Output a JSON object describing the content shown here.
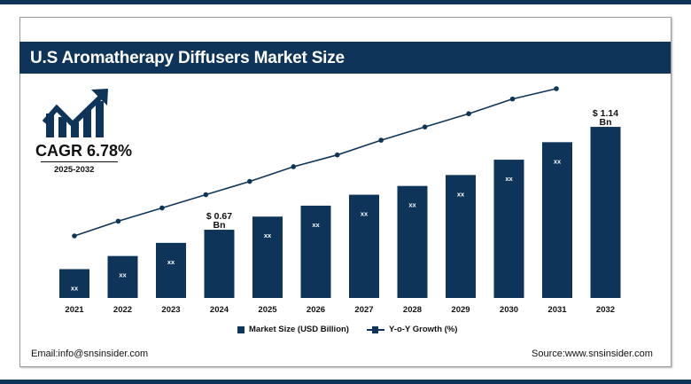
{
  "title": "U.S Aromatherapy Diffusers Market Size",
  "cagr": {
    "label": "CAGR 6.78%",
    "period": "2025-2032",
    "icon": "growth-chart-arrow-icon"
  },
  "footer": {
    "email": "Email:info@snsinsider.com",
    "source": "Source:www.snsinsider.com"
  },
  "colors": {
    "brand": "#0e3559",
    "text": "#111111"
  },
  "chart_data": {
    "type": "bar",
    "categories": [
      "2021",
      "2022",
      "2023",
      "2024",
      "2025",
      "2026",
      "2027",
      "2028",
      "2029",
      "2030",
      "2031",
      "2032"
    ],
    "series": [
      {
        "name": "Market Size (USD Billion)",
        "type": "bar",
        "values": [
          0.49,
          0.55,
          0.61,
          0.67,
          0.73,
          0.78,
          0.83,
          0.87,
          0.92,
          0.99,
          1.07,
          1.14
        ],
        "data_labels": [
          "xx",
          "xx",
          "xx",
          "$ 0.67 Bn",
          "xx",
          "xx",
          "xx",
          "xx",
          "xx",
          "xx",
          "xx",
          "$ 1.14 Bn"
        ]
      },
      {
        "name": "Y-o-Y Growth (%)",
        "type": "line",
        "values": [
          1.0,
          1.1,
          1.19,
          1.28,
          1.37,
          1.47,
          1.55,
          1.65,
          1.74,
          1.83,
          1.93,
          2.0
        ]
      }
    ],
    "legend": "bottom-center",
    "grid": false,
    "axes_visible": false
  }
}
